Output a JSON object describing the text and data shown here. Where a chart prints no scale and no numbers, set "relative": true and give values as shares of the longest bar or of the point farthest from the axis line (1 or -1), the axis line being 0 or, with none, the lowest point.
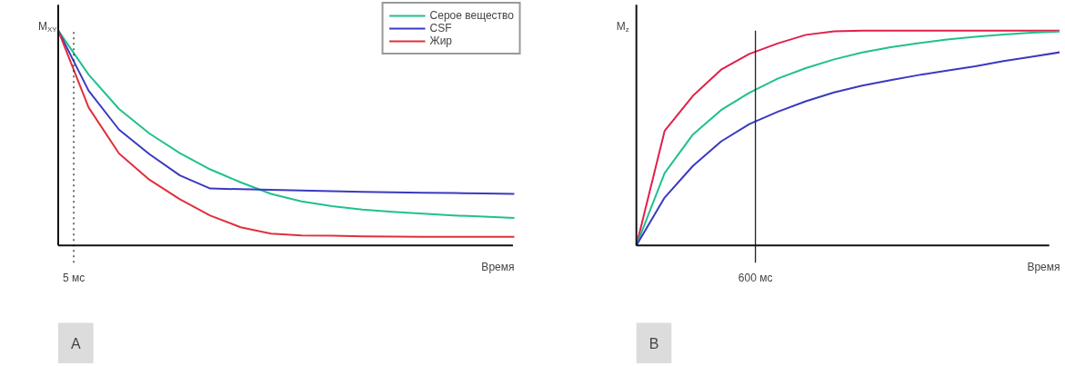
{
  "chart_data": [
    {
      "type": "line",
      "relative": true,
      "ylabel": "M$_{XY}$",
      "xlabel": "Время",
      "legend": "top right",
      "grid": false,
      "line_style": "solid",
      "marker": "none",
      "categories": [
        null,
        null,
        null,
        null,
        null,
        null,
        null,
        null,
        null,
        null,
        null,
        null,
        null,
        null,
        null,
        null
      ],
      "series": [
        {
          "name": "Серое вещество",
          "color": "#20c090",
          "values": [
            1,
            0.795,
            0.635,
            0.521,
            0.43,
            0.354,
            0.294,
            0.24,
            0.205,
            0.183,
            0.167,
            0.157,
            0.148,
            0.14,
            0.134,
            0.128
          ]
        },
        {
          "name": "CSF",
          "color": "#3a3ac0",
          "values": [
            1,
            0.72,
            0.539,
            0.425,
            0.326,
            0.265,
            0.262,
            0.259,
            0.256,
            0.253,
            0.25,
            0.247,
            0.245,
            0.244,
            0.242,
            0.24
          ]
        },
        {
          "name": "Жир",
          "color": "#e0303a",
          "values": [
            1,
            0.642,
            0.428,
            0.306,
            0.215,
            0.139,
            0.085,
            0.055,
            0.047,
            0.046,
            0.043,
            0.041,
            0.04,
            0.04,
            0.04,
            0.04
          ]
        }
      ],
      "annotations": [
        "5 мс",
        "A"
      ]
    },
    {
      "type": "line",
      "relative": true,
      "ylabel": "M$_{z}$",
      "xlabel": "Время",
      "legend": false,
      "grid": false,
      "line_style": "solid",
      "marker": "none",
      "categories": [
        null,
        null,
        null,
        null,
        null,
        null,
        null,
        null,
        null,
        null,
        null,
        null,
        null,
        null,
        null,
        null
      ],
      "series": [
        {
          "color": "#e0204a",
          "values": [
            0,
            0.533,
            0.696,
            0.818,
            0.891,
            0.94,
            0.98,
            0.996,
            1,
            1,
            1,
            1,
            1,
            1,
            1,
            1
          ]
        },
        {
          "color": "#20c090",
          "values": [
            0,
            0.337,
            0.516,
            0.63,
            0.711,
            0.776,
            0.825,
            0.866,
            0.898,
            0.922,
            0.941,
            0.958,
            0.971,
            0.982,
            0.99,
            0.995
          ]
        },
        {
          "color": "#3a3ac0",
          "values": [
            0,
            0.223,
            0.37,
            0.484,
            0.565,
            0.622,
            0.671,
            0.712,
            0.744,
            0.769,
            0.793,
            0.814,
            0.834,
            0.858,
            0.878,
            0.899
          ]
        }
      ],
      "annotations": [
        "600 мс",
        "B"
      ]
    }
  ]
}
